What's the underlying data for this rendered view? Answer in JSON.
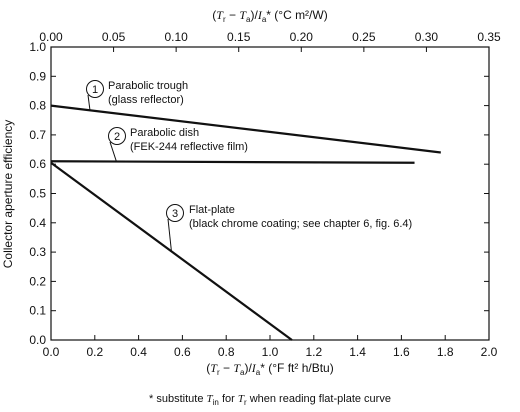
{
  "chart_data": {
    "type": "line",
    "top_axis": {
      "label_parts": [
        "(",
        "T",
        "r",
        " − ",
        "T",
        "a",
        ")/",
        "I",
        "a",
        "* (°C m²/W)"
      ],
      "ticks": [
        "0.00",
        "0.05",
        "0.10",
        "0.15",
        "0.20",
        "0.25",
        "0.30",
        "0.35"
      ],
      "range": [
        0,
        0.35
      ]
    },
    "bottom_axis": {
      "label_parts": [
        "(",
        "T",
        "r",
        " − ",
        "T",
        "a",
        ")/",
        "I",
        "a",
        "* (°F ft² h/Btu)"
      ],
      "ticks": [
        "0.0",
        "0.2",
        "0.4",
        "0.6",
        "0.8",
        "1.0",
        "1.2",
        "1.4",
        "1.6",
        "1.8",
        "2.0"
      ],
      "range": [
        0,
        2.0
      ]
    },
    "y_axis": {
      "label": "Collector aperture efficiency",
      "ticks": [
        "0.0",
        "0.1",
        "0.2",
        "0.3",
        "0.4",
        "0.5",
        "0.6",
        "0.7",
        "0.8",
        "0.9",
        "1.0"
      ],
      "range": [
        0,
        1.0
      ]
    },
    "grid": false,
    "series": [
      {
        "name": "Parabolic trough",
        "marker": "1",
        "description": "(glass reflector)",
        "x": [
          0.0,
          1.78
        ],
        "y": [
          0.8,
          0.64
        ]
      },
      {
        "name": "Parabolic dish",
        "marker": "2",
        "description": "(FEK-244 reflective film)",
        "x": [
          0.0,
          1.66
        ],
        "y": [
          0.61,
          0.605
        ]
      },
      {
        "name": "Flat-plate",
        "marker": "3",
        "description": "(black chrome coating; see chapter 6, fig. 6.4)",
        "x": [
          0.0,
          1.1
        ],
        "y": [
          0.605,
          0.0
        ]
      }
    ],
    "footnote": {
      "prefix": "* substitute ",
      "sym1": "T",
      "sub1": "in",
      "mid": " for ",
      "sym2": "T",
      "sub2": "r",
      "suffix": " when reading flat-plate curve"
    }
  }
}
